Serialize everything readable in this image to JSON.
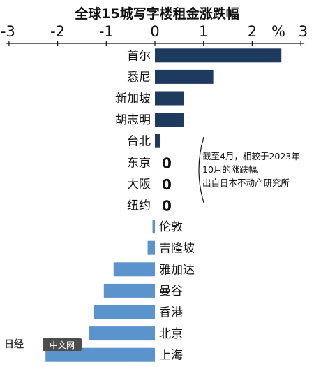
{
  "chart_data": {
    "type": "bar",
    "orientation": "horizontal",
    "title": "全球15城写字楼租金涨跌幅",
    "unit": "%",
    "xlim": [
      -3,
      3
    ],
    "ticks": [
      "-3",
      "-2",
      "-1",
      "0",
      "1",
      "2",
      "3"
    ],
    "categories": [
      "首尔",
      "悉尼",
      "新加坡",
      "胡志明",
      "台北",
      "东京",
      "大阪",
      "纽约",
      "伦敦",
      "吉隆坡",
      "雅加达",
      "曼谷",
      "香港",
      "北京",
      "上海"
    ],
    "values": [
      2.6,
      1.2,
      0.6,
      0.6,
      0.1,
      0,
      0,
      0,
      -0.05,
      -0.15,
      -0.85,
      -1.05,
      -1.25,
      -1.35,
      -2.25
    ],
    "zero_labels": [
      "0",
      "0",
      "0"
    ],
    "colors": {
      "positive": "#1f3a5f",
      "negative": "#5b93cc"
    },
    "annotation": [
      "截至4月，相较于2023年",
      "10月的涨跌幅。",
      "出自日本不动产研究所"
    ],
    "watermark": {
      "logo": "日经",
      "text": "中文网"
    }
  }
}
